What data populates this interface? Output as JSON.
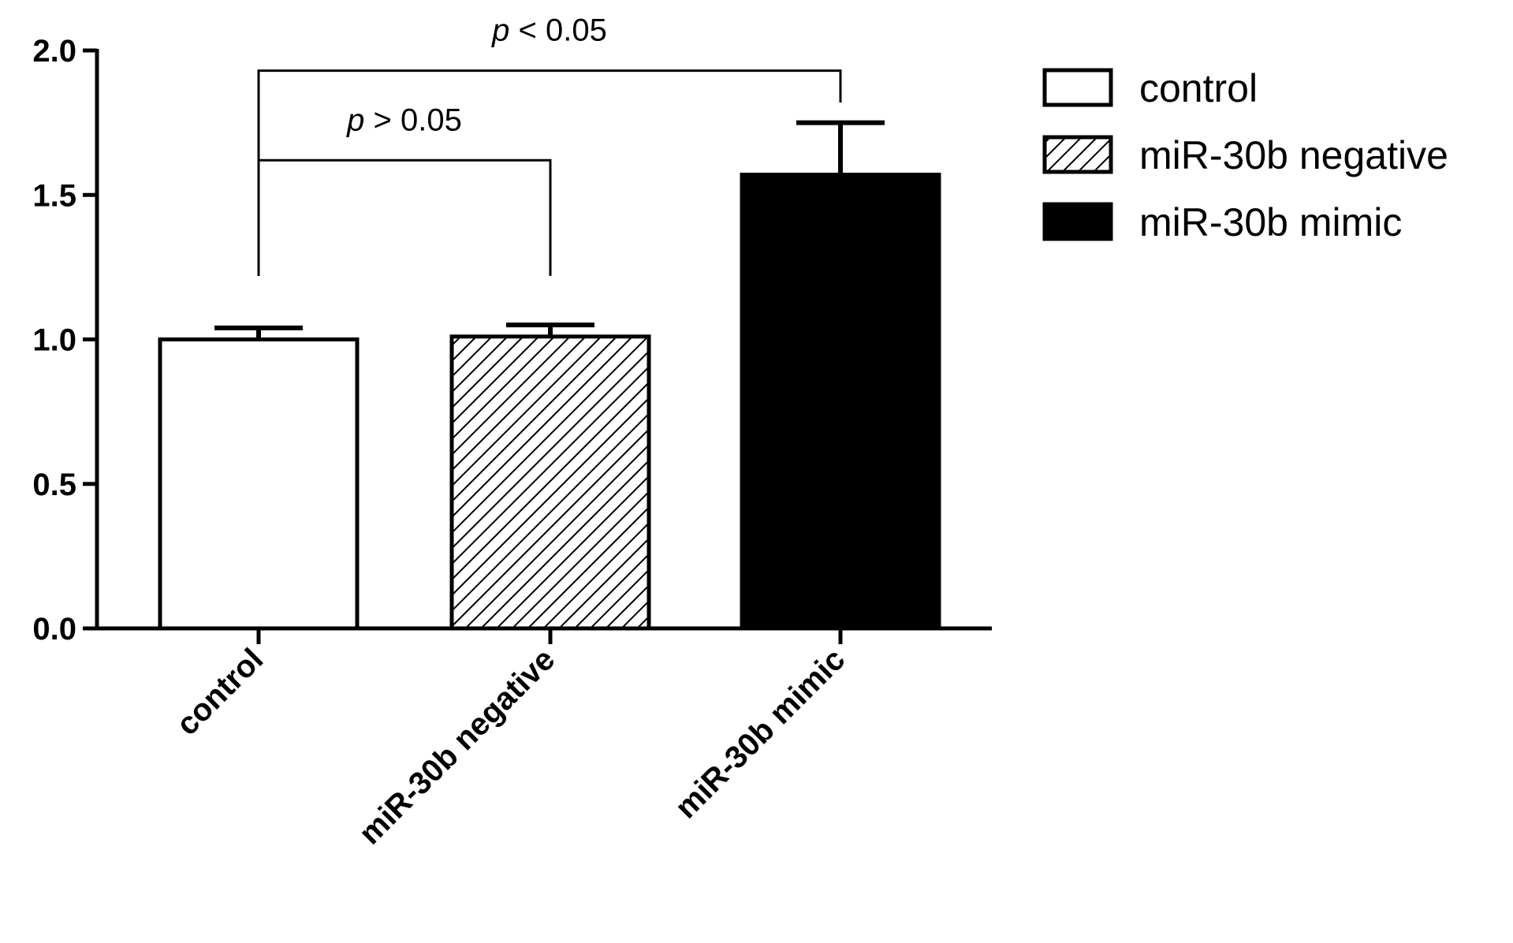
{
  "chart_data": {
    "type": "bar",
    "categories": [
      "control",
      "miR-30b negative",
      "miR-30b mimic"
    ],
    "values": [
      1.0,
      1.01,
      1.57
    ],
    "errors": [
      0.04,
      0.04,
      0.18
    ],
    "bar_styles": [
      "white",
      "hatched",
      "black"
    ],
    "ylim": [
      0,
      2.0
    ],
    "yticks": [
      0.0,
      0.5,
      1.0,
      1.5,
      2.0
    ],
    "ytick_labels": [
      "0.0",
      "0.5",
      "1.0",
      "1.5",
      "2.0"
    ],
    "xlabel": "",
    "ylabel": "",
    "legend": {
      "placement": "top-right",
      "entries": [
        {
          "label": "control",
          "style": "white"
        },
        {
          "label": "miR-30b negative",
          "style": "hatched"
        },
        {
          "label": "miR-30b mimic",
          "style": "black"
        }
      ]
    },
    "annotations": [
      {
        "from": 0,
        "to": 2,
        "p": "p",
        "rest": " < 0.05",
        "level": 1.93
      },
      {
        "from": 0,
        "to": 1,
        "p": "p",
        "rest": " > 0.05",
        "level": 1.62
      }
    ],
    "colors": {
      "bar_fill_dark": "#000000",
      "bar_fill_light": "#ffffff",
      "stroke": "#000000"
    }
  }
}
